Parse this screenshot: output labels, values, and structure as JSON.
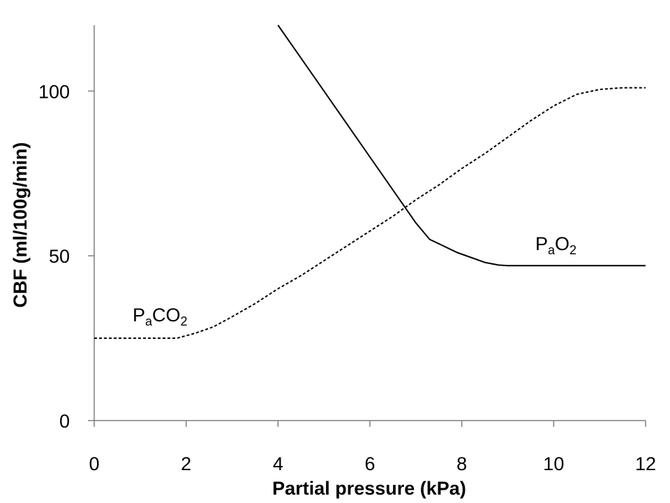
{
  "chart_data": {
    "type": "line",
    "xlabel": "Partial pressure (kPa)",
    "ylabel": "CBF  (ml/100g/min)",
    "xlim": [
      0,
      12
    ],
    "ylim": [
      0,
      120
    ],
    "x_ticks": [
      0,
      2,
      4,
      6,
      8,
      10,
      12
    ],
    "y_ticks": [
      0,
      50,
      100
    ],
    "grid": false,
    "legend": "none",
    "series": [
      {
        "name": "PaCO2",
        "label_parts": [
          "P",
          "a",
          "CO",
          "2"
        ],
        "style": "dashed",
        "color": "#000000",
        "points": [
          [
            0,
            25
          ],
          [
            1,
            25
          ],
          [
            1.8,
            25
          ],
          [
            2.2,
            26.5
          ],
          [
            2.6,
            28.5
          ],
          [
            3.0,
            31.5
          ],
          [
            3.5,
            35.5
          ],
          [
            4.0,
            40
          ],
          [
            4.5,
            44
          ],
          [
            5.0,
            48.5
          ],
          [
            5.5,
            53
          ],
          [
            6.0,
            57.5
          ],
          [
            6.5,
            62
          ],
          [
            7.0,
            67
          ],
          [
            7.5,
            71.5
          ],
          [
            8.0,
            76.5
          ],
          [
            8.5,
            81
          ],
          [
            9.0,
            86
          ],
          [
            9.5,
            91
          ],
          [
            10.0,
            95.5
          ],
          [
            10.5,
            99
          ],
          [
            11.0,
            100.5
          ],
          [
            11.5,
            101
          ],
          [
            12.0,
            101
          ]
        ]
      },
      {
        "name": "PaO2",
        "label_parts": [
          "P",
          "a",
          "O",
          "2"
        ],
        "style": "solid",
        "color": "#000000",
        "points": [
          [
            4.0,
            120
          ],
          [
            4.5,
            110
          ],
          [
            5.0,
            100
          ],
          [
            5.5,
            90
          ],
          [
            6.0,
            80
          ],
          [
            6.5,
            70
          ],
          [
            7.0,
            60
          ],
          [
            7.3,
            55
          ],
          [
            7.6,
            53
          ],
          [
            7.9,
            51
          ],
          [
            8.2,
            49.5
          ],
          [
            8.5,
            48
          ],
          [
            8.8,
            47.2
          ],
          [
            9.0,
            47
          ],
          [
            10.0,
            47
          ],
          [
            11.0,
            47
          ],
          [
            12.0,
            47
          ]
        ]
      }
    ]
  }
}
